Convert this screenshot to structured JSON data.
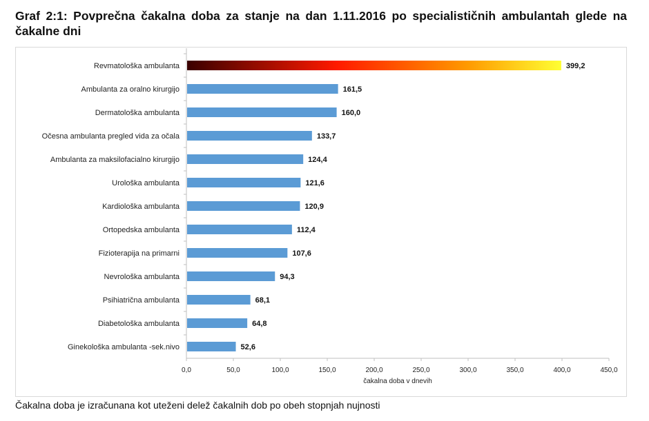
{
  "title": "Graf 2:1: Povprečna čakalna doba za stanje na dan 1.11.2016 po specialističnih ambulantah glede na čakalne dni",
  "caption": "Čakalna doba je izračunana kot uteženi delež čakalnih dob po obeh stopnjah nujnosti",
  "colors": {
    "bar": "#5b9bd5",
    "highlight_gradient": [
      "#3a0000",
      "#ff1a00",
      "#ff9a00",
      "#ffff33"
    ]
  },
  "chart_data": {
    "type": "bar",
    "orientation": "horizontal",
    "categories": [
      "Revmatološka ambulanta",
      "Ambulanta za oralno kirurgijo",
      "Dermatološka ambulanta",
      "Očesna ambulanta  pregled vida za očala",
      "Ambulanta za maksilofacialno kirurgijo",
      "Urološka ambulanta",
      "Kardiološka ambulanta",
      "Ortopedska ambulanta",
      "Fizioterapija na primarni",
      "Nevrološka ambulanta",
      "Psihiatrična ambulanta",
      "Diabetološka ambulanta",
      "Ginekološka ambulanta -sek.nivo"
    ],
    "values": [
      399.2,
      161.5,
      160.0,
      133.7,
      124.4,
      121.6,
      120.9,
      112.4,
      107.6,
      94.3,
      68.1,
      64.8,
      52.6
    ],
    "data_labels": [
      "399,2",
      "161,5",
      "160,0",
      "133,7",
      "124,4",
      "121,6",
      "120,9",
      "112,4",
      "107,6",
      "94,3",
      "68,1",
      "64,8",
      "52,6"
    ],
    "xlabel": "čakalna doba v dnevih",
    "xlim": [
      0,
      450
    ],
    "xticks": [
      "0,0",
      "50,0",
      "100,0",
      "150,0",
      "200,0",
      "250,0",
      "300,0",
      "350,0",
      "400,0",
      "450,0"
    ],
    "grid": false,
    "highlighted_category": "Revmatološka ambulanta"
  }
}
